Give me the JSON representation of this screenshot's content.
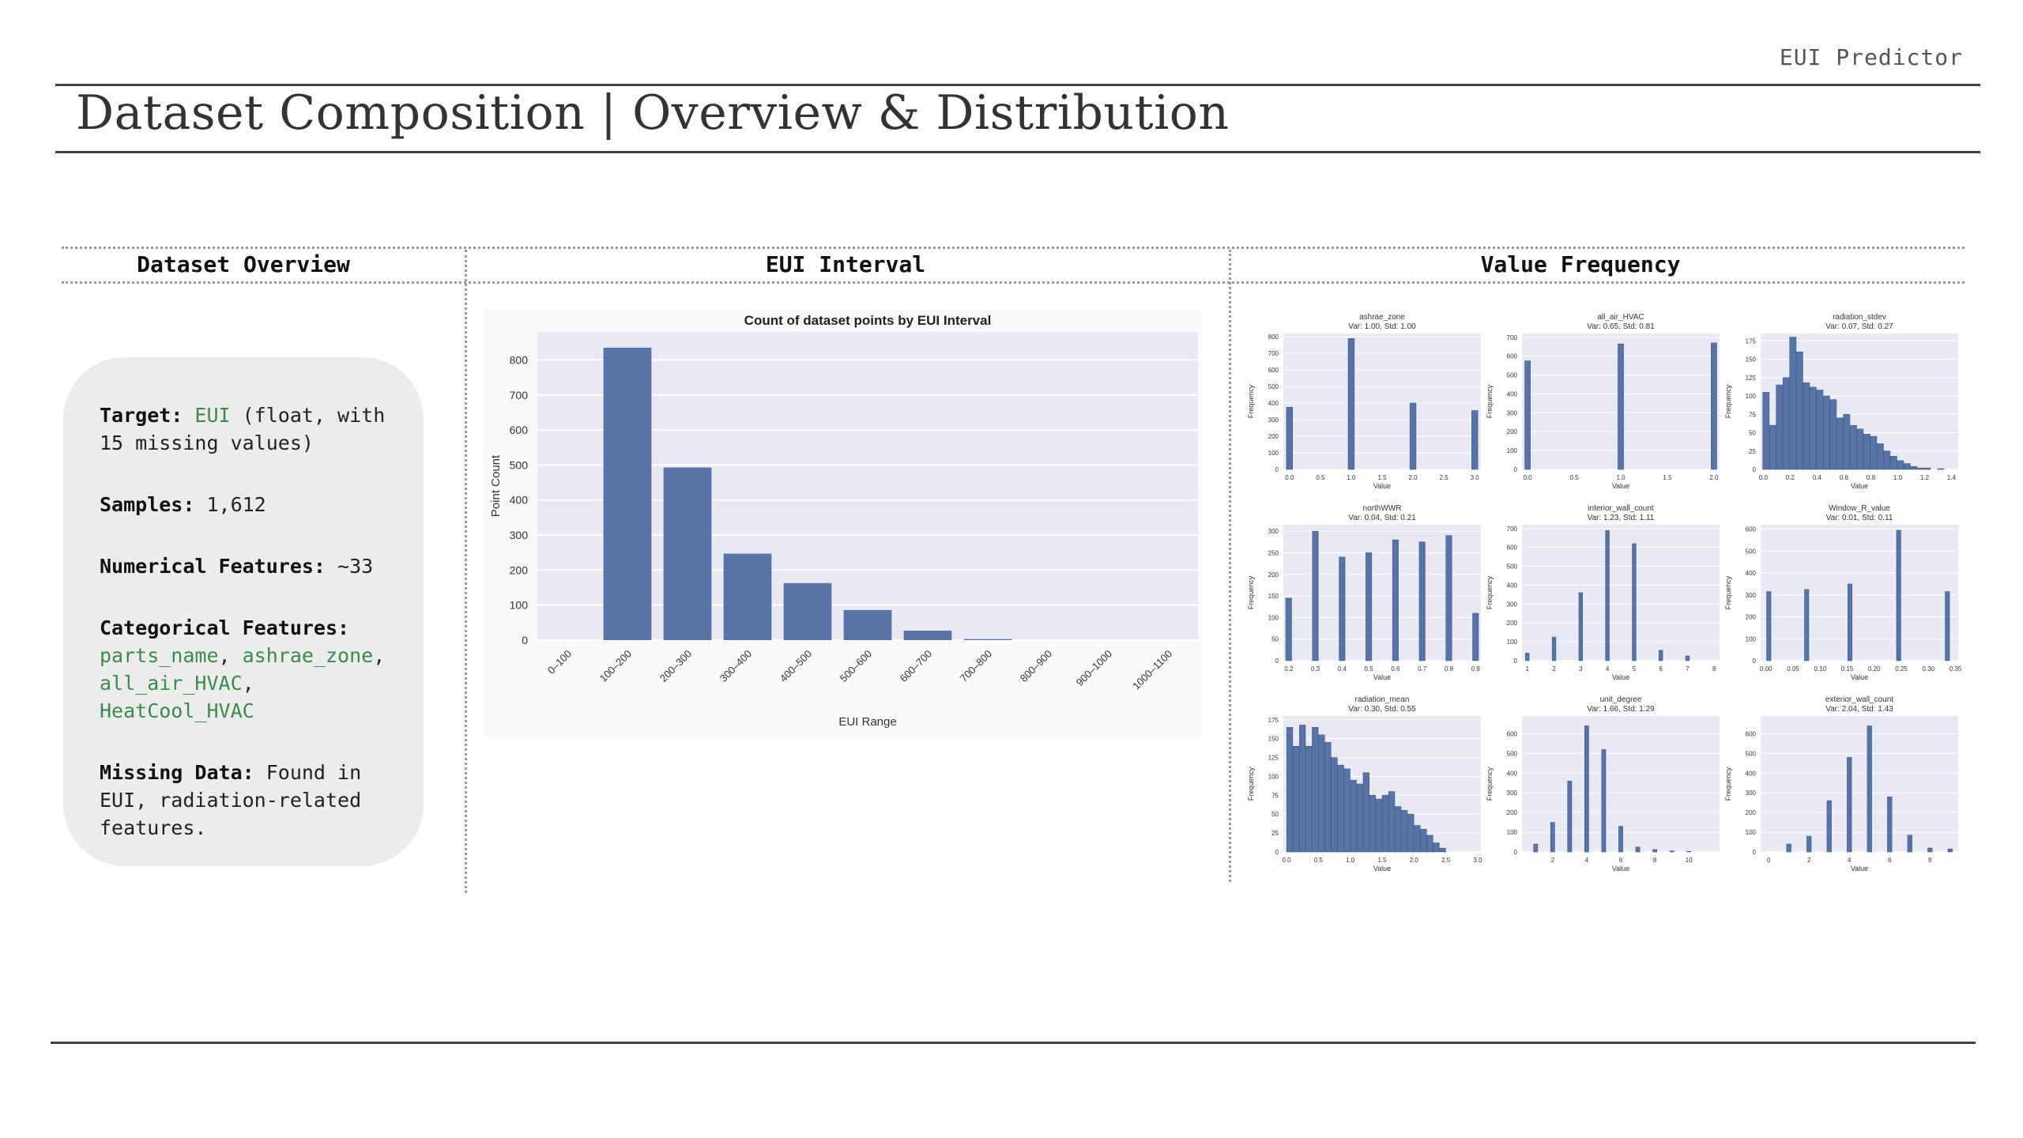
{
  "header": {
    "brand": "EUI Predictor",
    "title": "Dataset Composition | Overview & Distribution"
  },
  "sections": {
    "overview": "Dataset Overview",
    "interval": "EUI Interval",
    "frequency": "Value Frequency"
  },
  "overview": {
    "target_label": "Target:",
    "target_value": "EUI",
    "target_rest": " (float, with 15 missing values)",
    "samples_label": "Samples:",
    "samples_value": " 1,612",
    "numerical_label": "Numerical Features:",
    "numerical_value": " ~33",
    "categorical_label": "Categorical Features:",
    "categorical_items": [
      "parts_name",
      "ashrae_zone",
      "all_air_HVAC",
      "HeatCool_HVAC"
    ],
    "missing_label": "Missing Data:",
    "missing_value": " Found in EUI, radiation-related features."
  },
  "colors": {
    "bar": "#5874a6",
    "plot_bg": "#e8e9f3",
    "accent_green": "#3b8a4e"
  },
  "chart_data": [
    {
      "type": "bar",
      "title": "Count of dataset points by EUI Interval",
      "xlabel": "EUI Range",
      "ylabel": "Point Count",
      "categories": [
        "0–100",
        "100–200",
        "200–300",
        "300–400",
        "400–500",
        "500–600",
        "600–700",
        "700–800",
        "800–900",
        "900–1000",
        "1000–1100"
      ],
      "values": [
        0,
        835,
        493,
        247,
        163,
        86,
        27,
        3,
        0,
        0,
        0
      ],
      "yticks": [
        0,
        100,
        200,
        300,
        400,
        500,
        600,
        700,
        800
      ],
      "ylim": [
        0,
        880
      ],
      "grid": true
    },
    {
      "type": "bar",
      "title": "ashrae_zone",
      "subtitle": "Var: 1.00, Std: 1.00",
      "xlabel": "Value",
      "ylabel": "Frequency",
      "xlim": [
        -0.1,
        3.1
      ],
      "ylim": [
        0,
        820
      ],
      "xticks": [
        "0.0",
        "0.5",
        "1.0",
        "1.5",
        "2.0",
        "2.5",
        "3.0"
      ],
      "xtick_vals": [
        0,
        0.5,
        1,
        1.5,
        2,
        2.5,
        3
      ],
      "yticks": [
        "0",
        "100",
        "200",
        "300",
        "400",
        "500",
        "600",
        "700",
        "800"
      ],
      "ytick_vals": [
        0,
        100,
        200,
        300,
        400,
        500,
        600,
        700,
        800
      ],
      "bar_width": 0.1,
      "x": [
        0,
        1,
        2,
        3
      ],
      "values": [
        375,
        790,
        400,
        355
      ]
    },
    {
      "type": "bar",
      "title": "all_air_HVAC",
      "subtitle": "Var: 0.65, Std: 0.81",
      "xlabel": "Value",
      "ylabel": "Frequency",
      "xlim": [
        -0.06,
        2.06
      ],
      "ylim": [
        0,
        720
      ],
      "xticks": [
        "0.0",
        "0.5",
        "1.0",
        "1.5",
        "2.0"
      ],
      "xtick_vals": [
        0,
        0.5,
        1,
        1.5,
        2
      ],
      "yticks": [
        "0",
        "100",
        "200",
        "300",
        "400",
        "500",
        "600",
        "700"
      ],
      "ytick_vals": [
        0,
        100,
        200,
        300,
        400,
        500,
        600,
        700
      ],
      "bar_width": 0.06,
      "x": [
        0,
        1,
        2
      ],
      "values": [
        575,
        665,
        670
      ]
    },
    {
      "type": "bar",
      "title": "radiation_stdev",
      "subtitle": "Var: 0.07, Std: 0.27",
      "xlabel": "Value",
      "ylabel": "Frequency",
      "xlim": [
        -0.02,
        1.45
      ],
      "ylim": [
        0,
        185
      ],
      "xticks": [
        "0.0",
        "0.2",
        "0.4",
        "0.6",
        "0.8",
        "1.0",
        "1.2",
        "1.4"
      ],
      "xtick_vals": [
        0,
        0.2,
        0.4,
        0.6,
        0.8,
        1.0,
        1.2,
        1.4
      ],
      "yticks": [
        "0",
        "25",
        "50",
        "75",
        "100",
        "125",
        "150",
        "175"
      ],
      "ytick_vals": [
        0,
        25,
        50,
        75,
        100,
        125,
        150,
        175
      ],
      "bar_width": 0.048,
      "x": [
        0.02,
        0.07,
        0.12,
        0.17,
        0.22,
        0.27,
        0.32,
        0.37,
        0.42,
        0.47,
        0.52,
        0.57,
        0.62,
        0.67,
        0.72,
        0.77,
        0.82,
        0.87,
        0.92,
        0.97,
        1.02,
        1.07,
        1.12,
        1.17,
        1.22,
        1.27,
        1.32
      ],
      "values": [
        105,
        60,
        115,
        125,
        180,
        160,
        118,
        112,
        108,
        100,
        95,
        70,
        75,
        60,
        55,
        48,
        45,
        35,
        25,
        18,
        12,
        8,
        4,
        2,
        2,
        0,
        1
      ]
    },
    {
      "type": "bar",
      "title": "northWWR",
      "subtitle": "Var: 0.04, Std: 0.21",
      "xlabel": "Value",
      "ylabel": "Frequency",
      "xlim": [
        0.18,
        0.92
      ],
      "ylim": [
        0,
        315
      ],
      "xticks": [
        "0.2",
        "0.3",
        "0.4",
        "0.5",
        "0.6",
        "0.7",
        "0.8",
        "0.9"
      ],
      "xtick_vals": [
        0.2,
        0.3,
        0.4,
        0.5,
        0.6,
        0.7,
        0.8,
        0.9
      ],
      "yticks": [
        "0",
        "50",
        "100",
        "150",
        "200",
        "250",
        "300"
      ],
      "ytick_vals": [
        0,
        50,
        100,
        150,
        200,
        250,
        300
      ],
      "bar_width": 0.022,
      "x": [
        0.2,
        0.3,
        0.4,
        0.5,
        0.6,
        0.7,
        0.8,
        0.9
      ],
      "values": [
        145,
        300,
        240,
        250,
        280,
        275,
        290,
        110
      ]
    },
    {
      "type": "bar",
      "title": "interior_wall_count",
      "subtitle": "Var: 1.23, Std: 1.11",
      "xlabel": "Value",
      "ylabel": "Frequency",
      "xlim": [
        0.8,
        8.2
      ],
      "ylim": [
        0,
        720
      ],
      "xticks": [
        "1",
        "2",
        "3",
        "4",
        "5",
        "6",
        "7",
        "8"
      ],
      "xtick_vals": [
        1,
        2,
        3,
        4,
        5,
        6,
        7,
        8
      ],
      "yticks": [
        "0",
        "100",
        "200",
        "300",
        "400",
        "500",
        "600",
        "700"
      ],
      "ytick_vals": [
        0,
        100,
        200,
        300,
        400,
        500,
        600,
        700
      ],
      "bar_width": 0.14,
      "x": [
        1,
        2,
        3,
        4,
        5,
        6,
        7
      ],
      "values": [
        40,
        125,
        360,
        690,
        620,
        55,
        25
      ]
    },
    {
      "type": "bar",
      "title": "Window_R_value",
      "subtitle": "Var: 0.01, Std: 0.11",
      "xlabel": "Value",
      "ylabel": "Frequency",
      "xlim": [
        -0.01,
        0.355
      ],
      "ylim": [
        0,
        620
      ],
      "xticks": [
        "0.00",
        "0.05",
        "0.10",
        "0.15",
        "0.20",
        "0.25",
        "0.30",
        "0.35"
      ],
      "xtick_vals": [
        0,
        0.05,
        0.1,
        0.15,
        0.2,
        0.25,
        0.3,
        0.35
      ],
      "yticks": [
        "0",
        "100",
        "200",
        "300",
        "400",
        "500",
        "600"
      ],
      "ytick_vals": [
        0,
        100,
        200,
        300,
        400,
        500,
        600
      ],
      "bar_width": 0.008,
      "x": [
        0.005,
        0.075,
        0.155,
        0.245,
        0.335
      ],
      "values": [
        315,
        325,
        350,
        595,
        315
      ]
    },
    {
      "type": "bar",
      "title": "radiation_mean",
      "subtitle": "Var: 0.30, Std: 0.55",
      "xlabel": "Value",
      "ylabel": "Frequency",
      "xlim": [
        -0.05,
        3.05
      ],
      "ylim": [
        0,
        180
      ],
      "xticks": [
        "0.0",
        "0.5",
        "1.0",
        "1.5",
        "2.0",
        "2.5",
        "3.0"
      ],
      "xtick_vals": [
        0,
        0.5,
        1,
        1.5,
        2,
        2.5,
        3
      ],
      "yticks": [
        "0",
        "25",
        "50",
        "75",
        "100",
        "125",
        "150",
        "175"
      ],
      "ytick_vals": [
        0,
        25,
        50,
        75,
        100,
        125,
        150,
        175
      ],
      "bar_width": 0.095,
      "x": [
        0.05,
        0.15,
        0.25,
        0.35,
        0.45,
        0.55,
        0.65,
        0.75,
        0.85,
        0.95,
        1.05,
        1.15,
        1.25,
        1.35,
        1.45,
        1.55,
        1.65,
        1.75,
        1.85,
        1.95,
        2.05,
        2.15,
        2.25,
        2.35,
        2.45
      ],
      "values": [
        165,
        140,
        168,
        140,
        165,
        155,
        145,
        125,
        115,
        110,
        95,
        90,
        105,
        75,
        70,
        75,
        80,
        60,
        55,
        50,
        35,
        30,
        22,
        12,
        5
      ]
    },
    {
      "type": "bar",
      "title": "unit_degree",
      "subtitle": "Var: 1.66, Std: 1.29",
      "xlabel": "Value",
      "ylabel": "Frequency",
      "xlim": [
        0.2,
        11.8
      ],
      "ylim": [
        0,
        690
      ],
      "xticks": [
        "2",
        "4",
        "6",
        "8",
        "10"
      ],
      "xtick_vals": [
        2,
        4,
        6,
        8,
        10
      ],
      "yticks": [
        "0",
        "100",
        "200",
        "300",
        "400",
        "500",
        "600"
      ],
      "ytick_vals": [
        0,
        100,
        200,
        300,
        400,
        500,
        600
      ],
      "bar_width": 0.24,
      "x": [
        1,
        2,
        3,
        4,
        5,
        6,
        7,
        8,
        9,
        10
      ],
      "values": [
        40,
        150,
        360,
        640,
        520,
        130,
        25,
        12,
        5,
        3
      ]
    },
    {
      "type": "bar",
      "title": "exterior_wall_count",
      "subtitle": "Var: 2.04, Std: 1.43",
      "xlabel": "Value",
      "ylabel": "Frequency",
      "xlim": [
        -0.4,
        9.4
      ],
      "ylim": [
        0,
        690
      ],
      "xticks": [
        "0",
        "2",
        "4",
        "6",
        "8"
      ],
      "xtick_vals": [
        0,
        2,
        4,
        6,
        8
      ],
      "yticks": [
        "0",
        "100",
        "200",
        "300",
        "400",
        "500",
        "600"
      ],
      "ytick_vals": [
        0,
        100,
        200,
        300,
        400,
        500,
        600
      ],
      "bar_width": 0.22,
      "x": [
        1,
        2,
        3,
        4,
        5,
        6,
        7,
        8,
        9
      ],
      "values": [
        40,
        80,
        260,
        480,
        640,
        280,
        85,
        20,
        15
      ]
    }
  ]
}
